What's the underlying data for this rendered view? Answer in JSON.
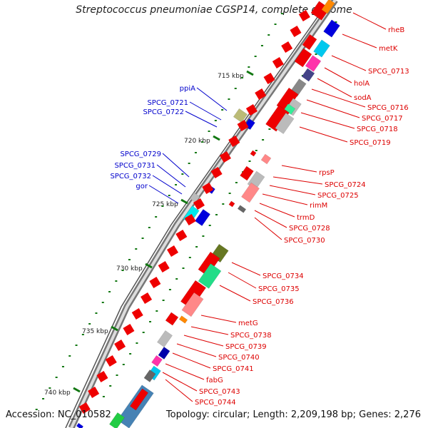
{
  "title": "Streptococcus pneumoniae CGSP14, complete genome",
  "footer": {
    "accession": "Accession: NC_010582",
    "summary": "Topology: circular; Length: 2,209,198 bp; Genes: 2,276"
  },
  "colors": {
    "label_right": "#dd0000",
    "label_left": "#0000cc",
    "tick": "#117711",
    "backbone": "#888888",
    "gene_red": "#ee0000"
  },
  "scale": {
    "ticks": [
      "715 kbp",
      "720 kbp",
      "725 kbp",
      "730 kbp",
      "735 kbp",
      "740 kbp"
    ]
  },
  "genes_right": [
    "rheB",
    "metK",
    "SPCG_0713",
    "holA",
    "sodA",
    "SPCG_0716",
    "SPCG_0717",
    "SPCG_0718",
    "SPCG_0719",
    "rpsP",
    "SPCG_0724",
    "SPCG_0725",
    "rimM",
    "trmD",
    "SPCG_0728",
    "SPCG_0730",
    "SPCG_0734",
    "SPCG_0735",
    "SPCG_0736",
    "metG",
    "SPCG_0738",
    "SPCG_0739",
    "SPCG_0740",
    "SPCG_0741",
    "fabG",
    "SPCG_0743",
    "SPCG_0744"
  ],
  "genes_left": [
    "ppiA",
    "SPCG_0721",
    "SPCG_0722",
    "SPCG_0729",
    "SPCG_0731",
    "SPCG_0732",
    "gor"
  ]
}
